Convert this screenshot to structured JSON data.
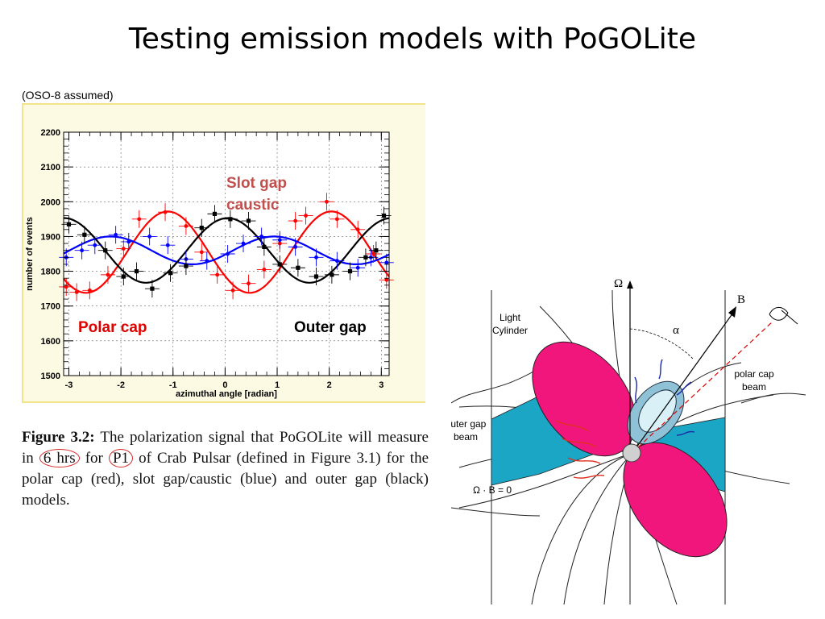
{
  "slide": {
    "title": "Testing emission models with PoGOLite",
    "note": "(OSO-8 assumed)"
  },
  "chart_data": {
    "type": "line",
    "xlabel": "azimuthal angle [radian]",
    "ylabel": "number of events",
    "xlim": [
      -3.1,
      3.15
    ],
    "ylim": [
      1500,
      2200
    ],
    "xticks": [
      -3,
      -2,
      -1,
      0,
      1,
      2,
      3
    ],
    "yticks": [
      1500,
      1600,
      1700,
      1800,
      1900,
      2000,
      2100,
      2200
    ],
    "grid": true,
    "annotations": [
      {
        "text": "Slot gap",
        "color": "#c0504d"
      },
      {
        "text": "caustic",
        "color": "#c0504d"
      },
      {
        "text": "Polar cap",
        "color": "#e00000"
      },
      {
        "text": "Outer gap",
        "color": "#000000"
      }
    ],
    "series": [
      {
        "model": "polar cap",
        "color": "#ff0000",
        "curve": {
          "mean": 1855,
          "amplitude": 117,
          "phase": -1.1
        },
        "points": [
          {
            "x": -3.05,
            "y": 1755
          },
          {
            "x": -2.85,
            "y": 1740
          },
          {
            "x": -2.6,
            "y": 1745
          },
          {
            "x": -2.25,
            "y": 1790
          },
          {
            "x": -1.95,
            "y": 1865
          },
          {
            "x": -1.65,
            "y": 1950
          },
          {
            "x": -1.15,
            "y": 1970
          },
          {
            "x": -0.75,
            "y": 1930
          },
          {
            "x": -0.45,
            "y": 1855
          },
          {
            "x": -0.15,
            "y": 1790
          },
          {
            "x": 0.15,
            "y": 1745
          },
          {
            "x": 0.45,
            "y": 1765
          },
          {
            "x": 0.75,
            "y": 1805
          },
          {
            "x": 1.05,
            "y": 1880
          },
          {
            "x": 1.35,
            "y": 1945
          },
          {
            "x": 1.55,
            "y": 1960
          },
          {
            "x": 1.95,
            "y": 2000
          },
          {
            "x": 2.15,
            "y": 1950
          },
          {
            "x": 2.55,
            "y": 1920
          },
          {
            "x": 2.85,
            "y": 1850
          },
          {
            "x": 3.1,
            "y": 1775
          }
        ]
      },
      {
        "model": "slot gap/caustic",
        "color": "#0000ff",
        "curve": {
          "mean": 1860,
          "amplitude": 40,
          "phase": -2.2
        },
        "points": [
          {
            "x": -3.05,
            "y": 1840
          },
          {
            "x": -2.75,
            "y": 1860
          },
          {
            "x": -2.5,
            "y": 1875
          },
          {
            "x": -2.1,
            "y": 1905
          },
          {
            "x": -1.85,
            "y": 1885
          },
          {
            "x": -1.45,
            "y": 1900
          },
          {
            "x": -1.1,
            "y": 1875
          },
          {
            "x": -0.75,
            "y": 1835
          },
          {
            "x": -0.35,
            "y": 1830
          },
          {
            "x": 0.05,
            "y": 1850
          },
          {
            "x": 0.35,
            "y": 1880
          },
          {
            "x": 0.7,
            "y": 1900
          },
          {
            "x": 1.05,
            "y": 1890
          },
          {
            "x": 1.35,
            "y": 1870
          },
          {
            "x": 1.75,
            "y": 1840
          },
          {
            "x": 2.15,
            "y": 1830
          },
          {
            "x": 2.55,
            "y": 1810
          },
          {
            "x": 2.8,
            "y": 1840
          },
          {
            "x": 3.1,
            "y": 1825
          }
        ]
      },
      {
        "model": "outer gap",
        "color": "#000000",
        "curve": {
          "mean": 1860,
          "amplitude": 93,
          "phase": 0.05
        },
        "points": [
          {
            "x": -3.0,
            "y": 1935
          },
          {
            "x": -2.7,
            "y": 1905
          },
          {
            "x": -2.3,
            "y": 1860
          },
          {
            "x": -1.95,
            "y": 1785
          },
          {
            "x": -1.7,
            "y": 1800
          },
          {
            "x": -1.4,
            "y": 1750
          },
          {
            "x": -1.05,
            "y": 1795
          },
          {
            "x": -0.75,
            "y": 1815
          },
          {
            "x": -0.45,
            "y": 1925
          },
          {
            "x": -0.2,
            "y": 1965
          },
          {
            "x": 0.1,
            "y": 1950
          },
          {
            "x": 0.45,
            "y": 1945
          },
          {
            "x": 0.75,
            "y": 1870
          },
          {
            "x": 1.05,
            "y": 1820
          },
          {
            "x": 1.4,
            "y": 1810
          },
          {
            "x": 1.75,
            "y": 1785
          },
          {
            "x": 2.05,
            "y": 1790
          },
          {
            "x": 2.4,
            "y": 1800
          },
          {
            "x": 2.7,
            "y": 1840
          },
          {
            "x": 2.9,
            "y": 1860
          },
          {
            "x": 3.05,
            "y": 1960
          }
        ]
      }
    ]
  },
  "caption": {
    "label": "Figure 3.2:",
    "part1": " The polarization signal that PoGOLite will measure in ",
    "highlight1": "6 hrs",
    "part2": " for ",
    "highlight2": "P1",
    "part3": " of Crab Pulsar (defined in Figure 3.1) for the polar cap (red), slot gap/caustic (blue) and outer gap (black) models."
  },
  "diagram": {
    "omega": "Ω",
    "b_field": "B",
    "alpha": "α",
    "light_cylinder": [
      "Light",
      "Cylinder"
    ],
    "polar_cap_beam": [
      "polar cap",
      "beam"
    ],
    "outer_gap_beam": [
      "outer gap",
      "beam"
    ],
    "null_surface": "Ω · B = 0",
    "colors": {
      "lobe": "#f0167c",
      "gap": "#1aa6c4",
      "beam": "#a8d8e8"
    }
  }
}
